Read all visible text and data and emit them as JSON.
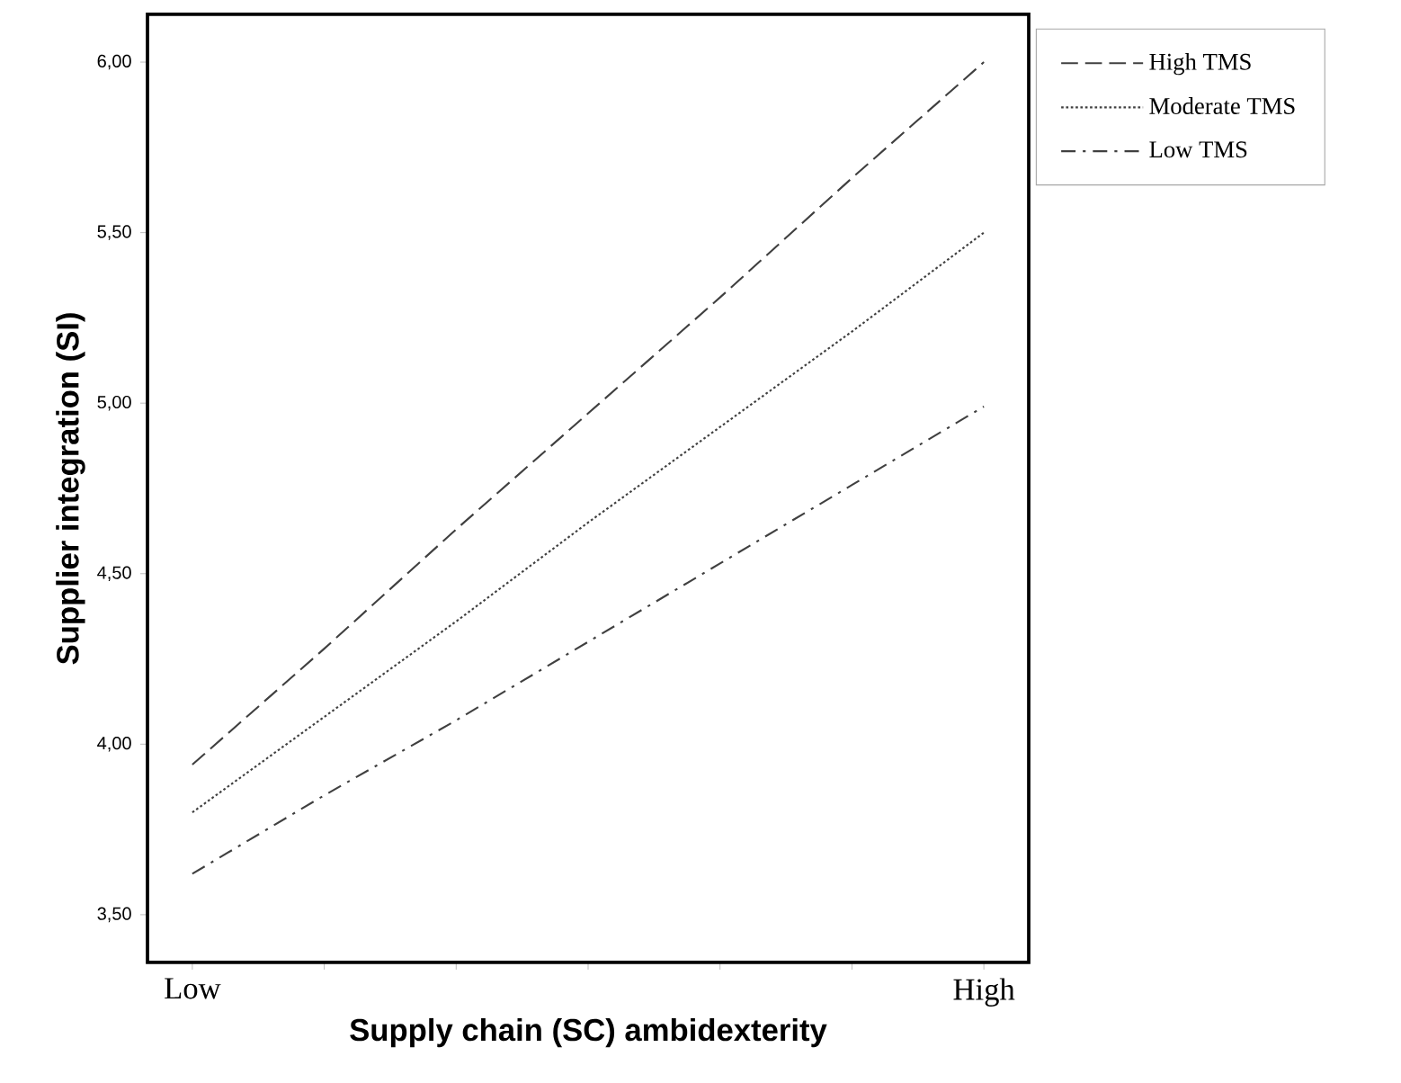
{
  "chart_data": {
    "type": "line",
    "xlabel": "Supply chain (SC) ambidexterity",
    "ylabel": "Supplier integration (SI)",
    "categories": [
      "Low",
      null,
      null,
      null,
      null,
      null,
      "High"
    ],
    "series": [
      {
        "name": "High TMS",
        "color": "#404040",
        "line_style": "dashed",
        "values": [
          3.94,
          4.28,
          4.63,
          4.97,
          5.31,
          5.66,
          6.0
        ]
      },
      {
        "name": "Moderate TMS",
        "color": "#404040",
        "line_style": "dotted",
        "values": [
          3.8,
          4.08,
          4.36,
          4.65,
          4.93,
          5.21,
          5.5
        ]
      },
      {
        "name": "Low TMS",
        "color": "#404040",
        "line_style": "dashdot",
        "values": [
          3.62,
          3.85,
          4.07,
          4.3,
          4.53,
          4.76,
          4.99
        ]
      }
    ],
    "ylim": [
      3.36,
      6.14
    ],
    "yticks": [
      {
        "value": 3.5,
        "label": "3,50"
      },
      {
        "value": 4,
        "label": "4,00"
      },
      {
        "value": 4.5,
        "label": "4,50"
      },
      {
        "value": 5,
        "label": "5,00"
      },
      {
        "value": 5.5,
        "label": "5,50"
      },
      {
        "value": 6,
        "label": "6,00"
      }
    ],
    "legend": "top right",
    "grid": false,
    "marker": "none"
  }
}
